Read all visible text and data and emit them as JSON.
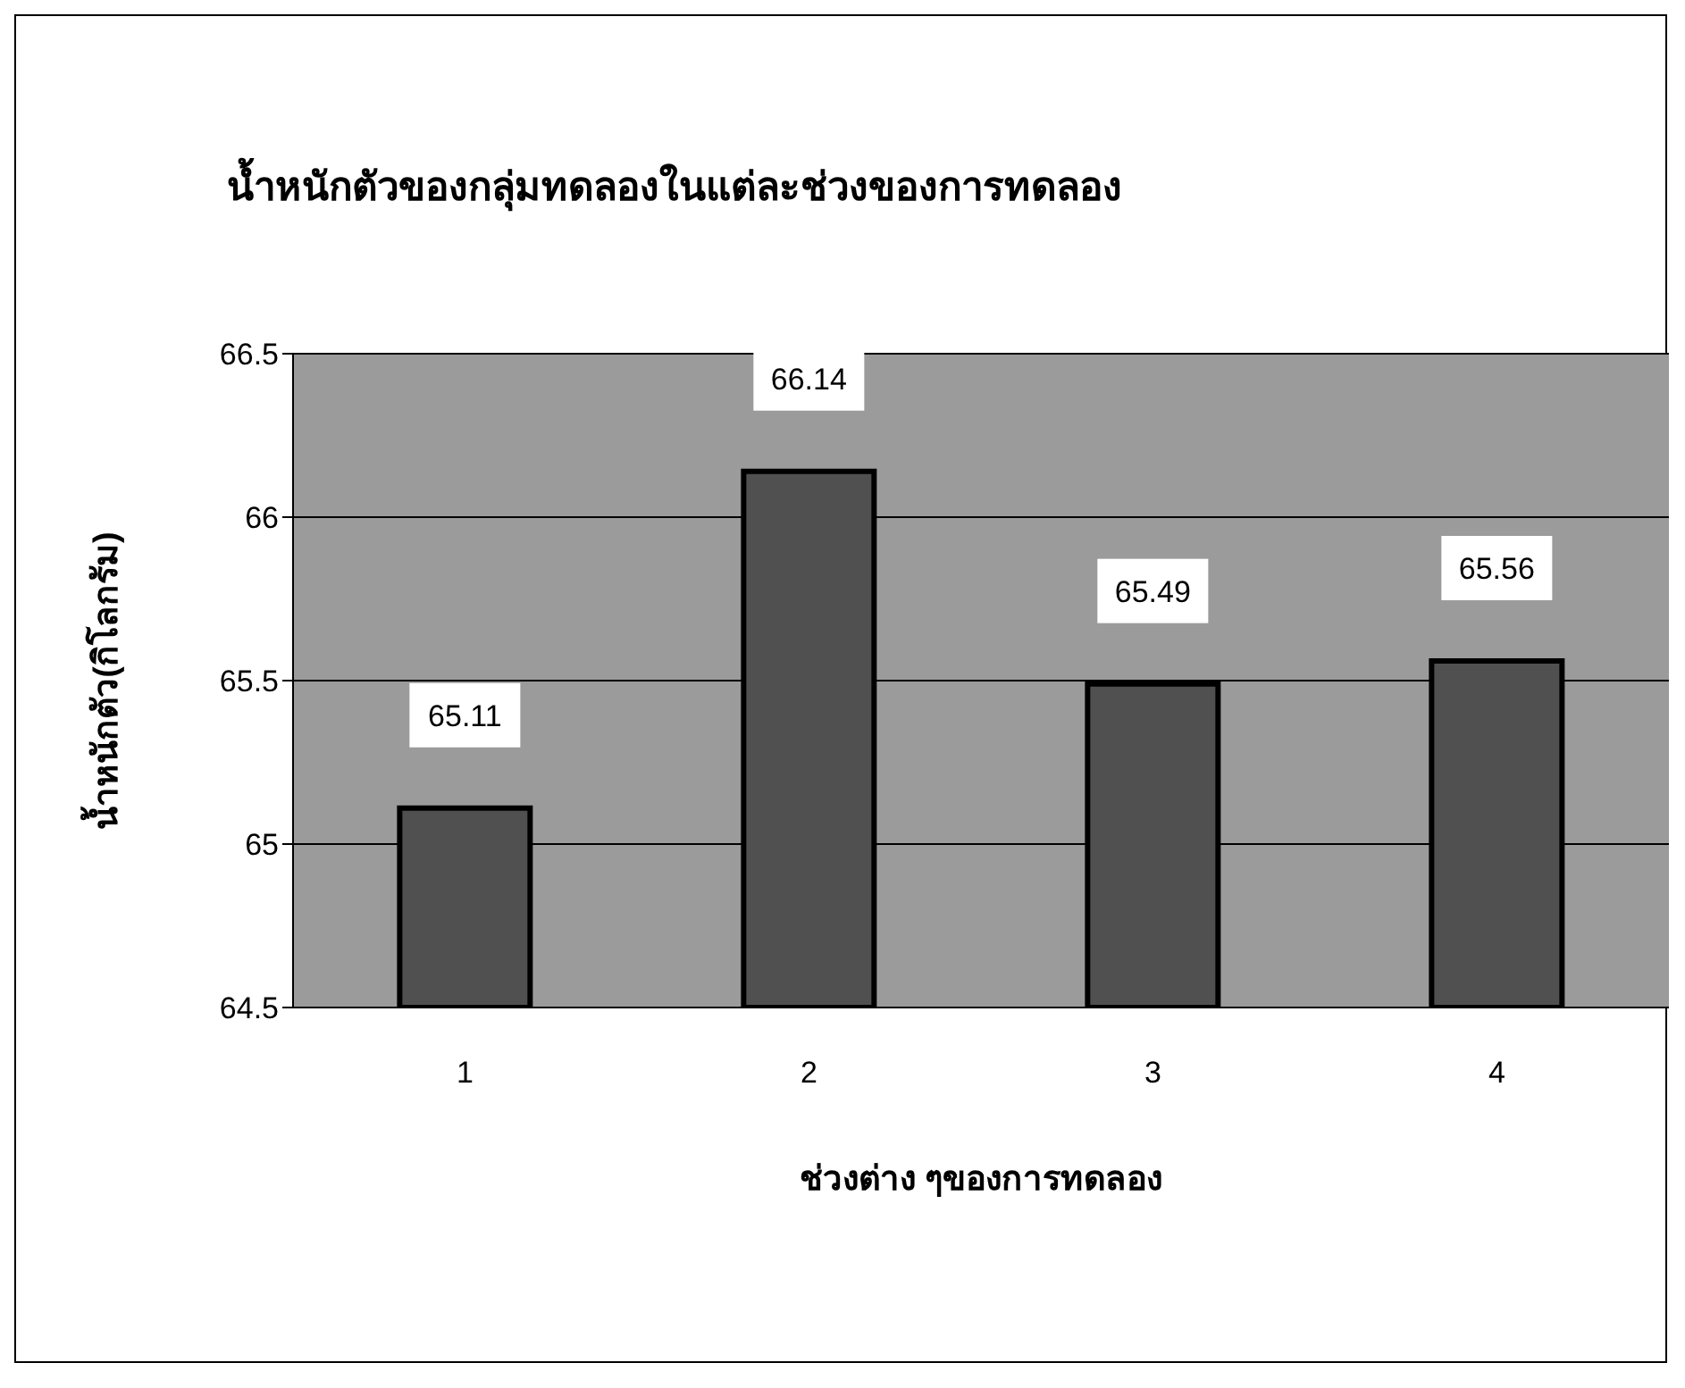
{
  "chart_data": {
    "type": "bar",
    "title": "น้ำหนักตัวของกลุ่มทดลองในแต่ละช่วงของการทดลอง",
    "xlabel": "ช่วงต่าง ๆของการทดลอง",
    "ylabel": "น้ำหนักตัว(กิโลกรัม)",
    "categories": [
      "1",
      "2",
      "3",
      "4"
    ],
    "values": [
      65.11,
      66.14,
      65.49,
      65.56
    ],
    "color": "#505050",
    "ylim": [
      64.5,
      66.5
    ],
    "yticks": [
      64.5,
      65,
      65.5,
      66,
      66.5
    ],
    "grid": "y",
    "data_labels": true
  }
}
